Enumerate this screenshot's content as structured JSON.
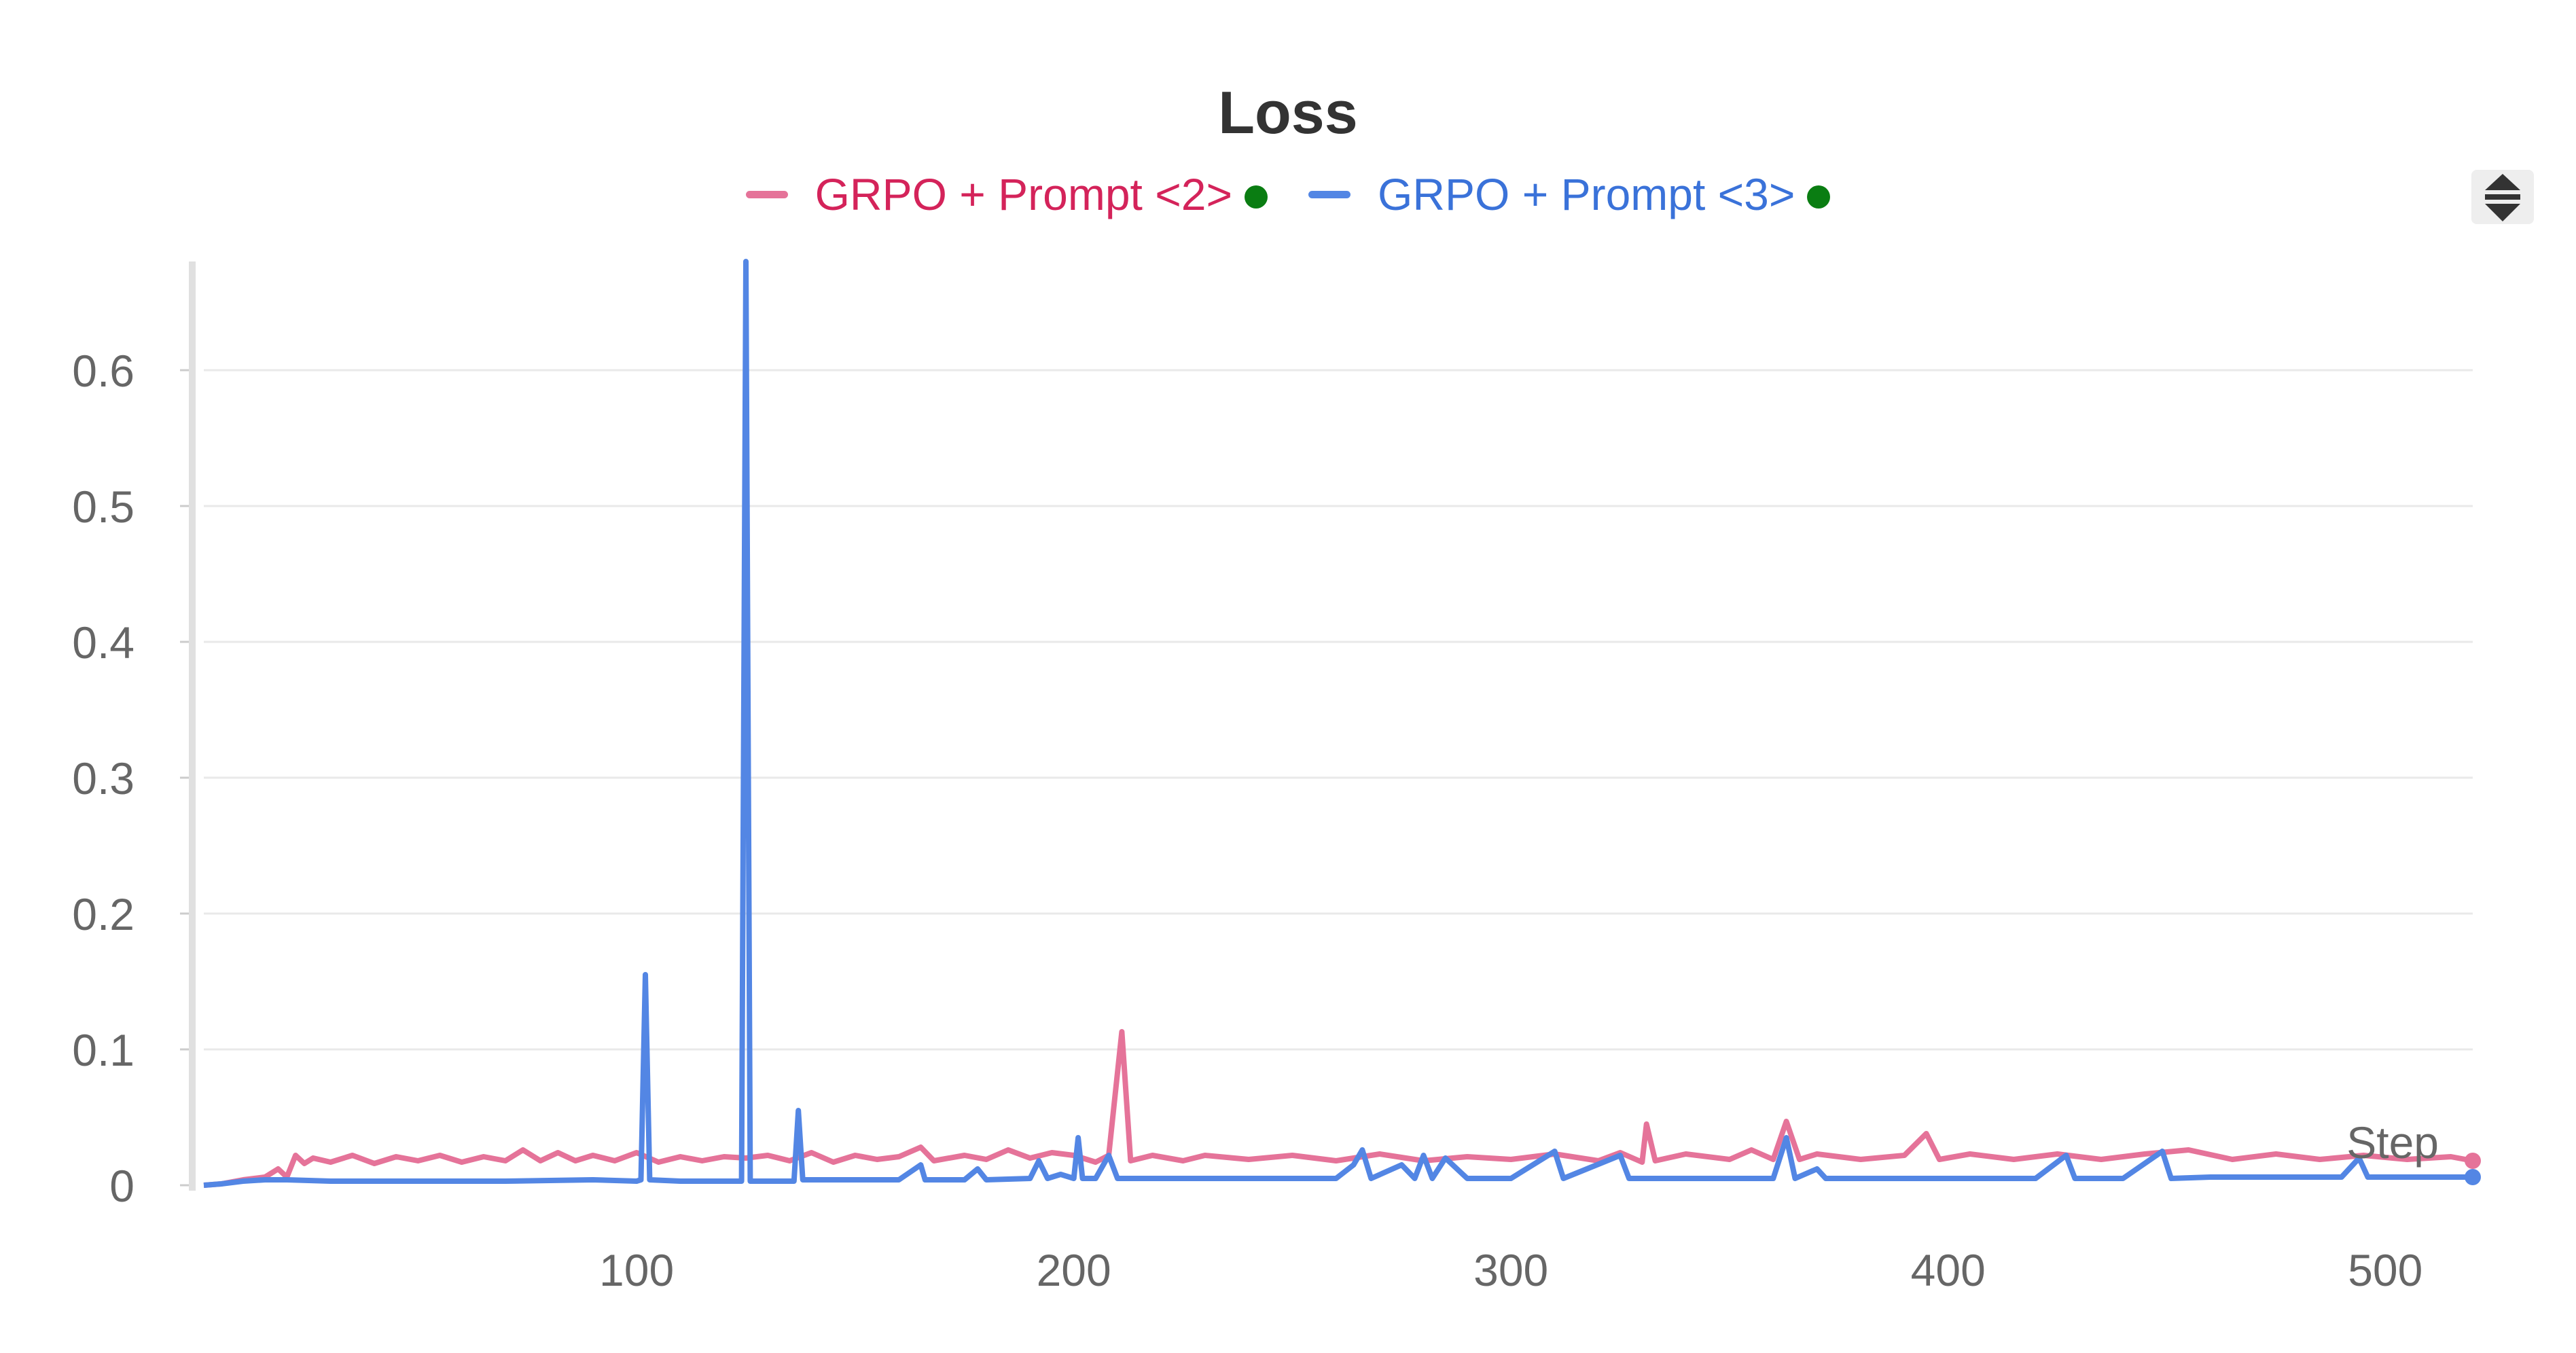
{
  "chart_data": {
    "type": "line",
    "title": "Loss",
    "xlabel": "Step",
    "ylabel": "",
    "xlim": [
      1,
      520
    ],
    "ylim": [
      0,
      0.68
    ],
    "x_ticks": [
      "100",
      "200",
      "300",
      "400",
      "500"
    ],
    "y_ticks": [
      "0",
      "0.1",
      "0.2",
      "0.3",
      "0.4",
      "0.5",
      "0.6"
    ],
    "grid": true,
    "legend_position": "top-center",
    "series": [
      {
        "name": "GRPO + Prompt <2>",
        "color": "#e57399",
        "text_color": "#d4235a",
        "points": [
          [
            1,
            0
          ],
          [
            5,
            0.001
          ],
          [
            10,
            0.004
          ],
          [
            15,
            0.006
          ],
          [
            18,
            0.012
          ],
          [
            20,
            0.006
          ],
          [
            22,
            0.022
          ],
          [
            24,
            0.016
          ],
          [
            26,
            0.02
          ],
          [
            30,
            0.017
          ],
          [
            35,
            0.022
          ],
          [
            40,
            0.016
          ],
          [
            45,
            0.021
          ],
          [
            50,
            0.018
          ],
          [
            55,
            0.022
          ],
          [
            60,
            0.017
          ],
          [
            65,
            0.021
          ],
          [
            70,
            0.018
          ],
          [
            74,
            0.026
          ],
          [
            78,
            0.018
          ],
          [
            82,
            0.024
          ],
          [
            86,
            0.018
          ],
          [
            90,
            0.022
          ],
          [
            95,
            0.018
          ],
          [
            100,
            0.024
          ],
          [
            105,
            0.017
          ],
          [
            110,
            0.021
          ],
          [
            115,
            0.018
          ],
          [
            120,
            0.021
          ],
          [
            125,
            0.02
          ],
          [
            130,
            0.022
          ],
          [
            135,
            0.018
          ],
          [
            140,
            0.024
          ],
          [
            145,
            0.017
          ],
          [
            150,
            0.022
          ],
          [
            155,
            0.019
          ],
          [
            160,
            0.021
          ],
          [
            165,
            0.028
          ],
          [
            168,
            0.018
          ],
          [
            175,
            0.022
          ],
          [
            180,
            0.019
          ],
          [
            185,
            0.026
          ],
          [
            190,
            0.02
          ],
          [
            195,
            0.024
          ],
          [
            200,
            0.022
          ],
          [
            205,
            0.017
          ],
          [
            208,
            0.022
          ],
          [
            211,
            0.113
          ],
          [
            213,
            0.018
          ],
          [
            218,
            0.022
          ],
          [
            225,
            0.018
          ],
          [
            230,
            0.022
          ],
          [
            240,
            0.019
          ],
          [
            250,
            0.022
          ],
          [
            260,
            0.018
          ],
          [
            270,
            0.023
          ],
          [
            280,
            0.018
          ],
          [
            290,
            0.021
          ],
          [
            300,
            0.019
          ],
          [
            310,
            0.023
          ],
          [
            320,
            0.018
          ],
          [
            325,
            0.024
          ],
          [
            330,
            0.017
          ],
          [
            331,
            0.045
          ],
          [
            333,
            0.018
          ],
          [
            340,
            0.023
          ],
          [
            350,
            0.019
          ],
          [
            355,
            0.026
          ],
          [
            360,
            0.019
          ],
          [
            363,
            0.047
          ],
          [
            366,
            0.019
          ],
          [
            370,
            0.023
          ],
          [
            380,
            0.019
          ],
          [
            390,
            0.022
          ],
          [
            395,
            0.038
          ],
          [
            398,
            0.019
          ],
          [
            405,
            0.023
          ],
          [
            415,
            0.019
          ],
          [
            425,
            0.023
          ],
          [
            435,
            0.019
          ],
          [
            445,
            0.023
          ],
          [
            455,
            0.026
          ],
          [
            465,
            0.019
          ],
          [
            475,
            0.023
          ],
          [
            485,
            0.019
          ],
          [
            495,
            0.022
          ],
          [
            505,
            0.019
          ],
          [
            515,
            0.021
          ],
          [
            520,
            0.018
          ]
        ]
      },
      {
        "name": "GRPO + Prompt <3>",
        "color": "#5386e4",
        "text_color": "#3a72d9",
        "points": [
          [
            1,
            0
          ],
          [
            5,
            0.001
          ],
          [
            10,
            0.003
          ],
          [
            15,
            0.004
          ],
          [
            20,
            0.004
          ],
          [
            30,
            0.003
          ],
          [
            50,
            0.003
          ],
          [
            70,
            0.003
          ],
          [
            90,
            0.004
          ],
          [
            100,
            0.003
          ],
          [
            101,
            0.004
          ],
          [
            102,
            0.155
          ],
          [
            103,
            0.004
          ],
          [
            110,
            0.003
          ],
          [
            120,
            0.003
          ],
          [
            124,
            0.003
          ],
          [
            125,
            0.68
          ],
          [
            126,
            0.003
          ],
          [
            130,
            0.003
          ],
          [
            136,
            0.003
          ],
          [
            137,
            0.055
          ],
          [
            138,
            0.004
          ],
          [
            145,
            0.004
          ],
          [
            150,
            0.004
          ],
          [
            160,
            0.004
          ],
          [
            165,
            0.015
          ],
          [
            166,
            0.004
          ],
          [
            175,
            0.004
          ],
          [
            178,
            0.012
          ],
          [
            180,
            0.004
          ],
          [
            190,
            0.005
          ],
          [
            192,
            0.018
          ],
          [
            194,
            0.005
          ],
          [
            197,
            0.008
          ],
          [
            200,
            0.005
          ],
          [
            201,
            0.035
          ],
          [
            202,
            0.005
          ],
          [
            205,
            0.005
          ],
          [
            208,
            0.022
          ],
          [
            210,
            0.005
          ],
          [
            220,
            0.005
          ],
          [
            230,
            0.005
          ],
          [
            240,
            0.005
          ],
          [
            250,
            0.005
          ],
          [
            260,
            0.005
          ],
          [
            264,
            0.015
          ],
          [
            266,
            0.026
          ],
          [
            268,
            0.005
          ],
          [
            275,
            0.015
          ],
          [
            278,
            0.005
          ],
          [
            280,
            0.022
          ],
          [
            282,
            0.005
          ],
          [
            285,
            0.02
          ],
          [
            290,
            0.005
          ],
          [
            300,
            0.005
          ],
          [
            310,
            0.025
          ],
          [
            312,
            0.005
          ],
          [
            325,
            0.022
          ],
          [
            327,
            0.005
          ],
          [
            340,
            0.005
          ],
          [
            350,
            0.005
          ],
          [
            360,
            0.005
          ],
          [
            363,
            0.035
          ],
          [
            365,
            0.005
          ],
          [
            370,
            0.012
          ],
          [
            372,
            0.005
          ],
          [
            380,
            0.005
          ],
          [
            390,
            0.005
          ],
          [
            400,
            0.005
          ],
          [
            410,
            0.005
          ],
          [
            420,
            0.005
          ],
          [
            427,
            0.022
          ],
          [
            429,
            0.005
          ],
          [
            440,
            0.005
          ],
          [
            449,
            0.025
          ],
          [
            451,
            0.005
          ],
          [
            460,
            0.006
          ],
          [
            470,
            0.006
          ],
          [
            480,
            0.006
          ],
          [
            490,
            0.006
          ],
          [
            494,
            0.02
          ],
          [
            496,
            0.006
          ],
          [
            505,
            0.006
          ],
          [
            515,
            0.006
          ],
          [
            520,
            0.006
          ]
        ]
      }
    ]
  },
  "legend_status": "online",
  "legend_status_color": "#0a7d12"
}
